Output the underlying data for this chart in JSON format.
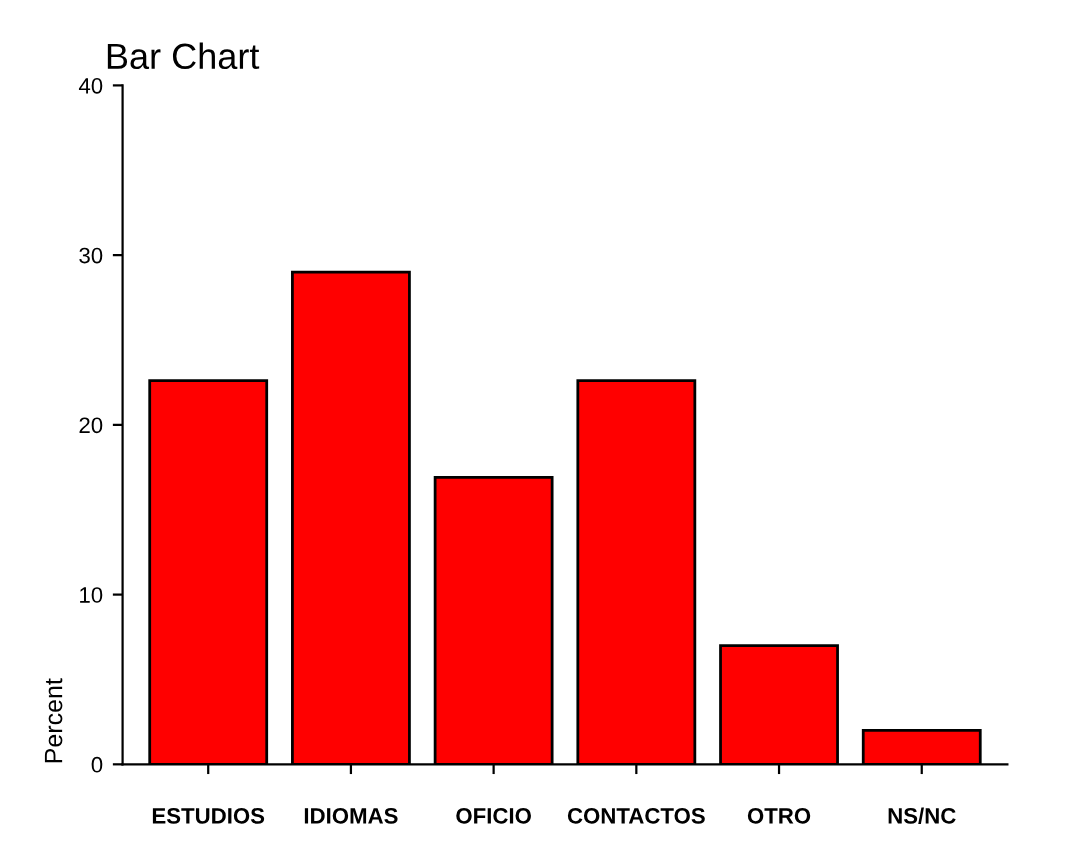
{
  "chart_data": {
    "type": "bar",
    "title": "Bar Chart",
    "ylabel": "Percent",
    "categories": [
      "ESTUDIOS",
      "IDIOMAS",
      "OFICIO",
      "CONTACTOS",
      "OTRO",
      "NS/NC"
    ],
    "values": [
      22.6,
      29.0,
      16.9,
      22.6,
      7.0,
      2.0
    ],
    "color": "#ff0000",
    "ylim": [
      0,
      40
    ],
    "yticks": [
      0,
      10,
      20,
      30,
      40
    ],
    "grid": false,
    "legend": false
  }
}
